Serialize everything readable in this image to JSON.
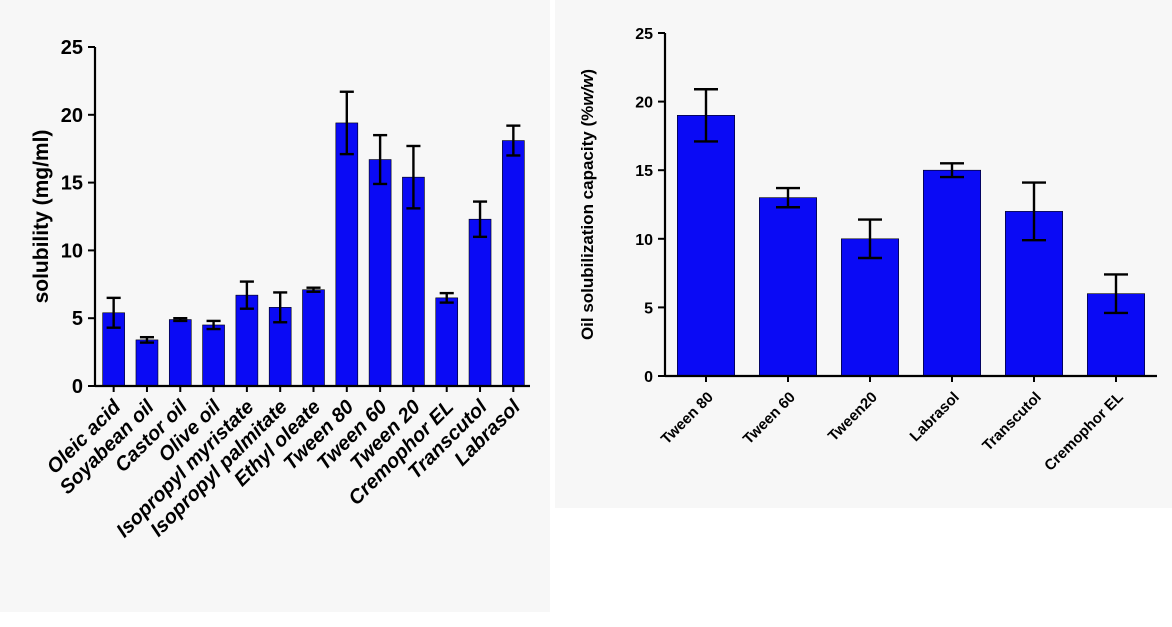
{
  "chart_data": [
    {
      "type": "bar",
      "ylabel": "solubility (mg/ml)",
      "xlabel": "",
      "ylim": [
        0,
        25
      ],
      "yticks": [
        "0",
        "5",
        "10",
        "15",
        "20",
        "25"
      ],
      "categories": [
        "Oleic acid",
        "Soyabean oil",
        "Castor oil",
        "Olive oil",
        "Isopropyl myristate",
        "Isopropyl palmitate",
        "Ethyl oleate",
        "Tween 80",
        "Tween 60",
        "Tween 20",
        "Cremophor EL",
        "Transcutol",
        "Labrasol"
      ],
      "values": [
        5.4,
        3.4,
        4.9,
        4.5,
        6.7,
        5.8,
        7.1,
        19.4,
        16.7,
        15.4,
        6.5,
        12.3,
        18.1
      ],
      "errors": [
        1.1,
        0.2,
        0.1,
        0.3,
        1.0,
        1.1,
        0.15,
        2.3,
        1.8,
        2.3,
        0.35,
        1.3,
        1.1
      ],
      "color": "#0a0af5",
      "grid": false
    },
    {
      "type": "bar",
      "ylabel": "Oil solubilization capacity (%w/w)",
      "xlabel": "",
      "ylim": [
        0,
        25
      ],
      "yticks": [
        "0",
        "5",
        "10",
        "15",
        "20",
        "25"
      ],
      "categories": [
        "Tween 80",
        "Tween 60",
        "Tween20",
        "Labrasol",
        "Transcutol",
        "Cremophor EL"
      ],
      "values": [
        19.0,
        13.0,
        10.0,
        15.0,
        12.0,
        6.0
      ],
      "errors": [
        1.9,
        0.7,
        1.4,
        0.5,
        2.1,
        1.4
      ],
      "color": "#0a0af5",
      "grid": false
    }
  ]
}
